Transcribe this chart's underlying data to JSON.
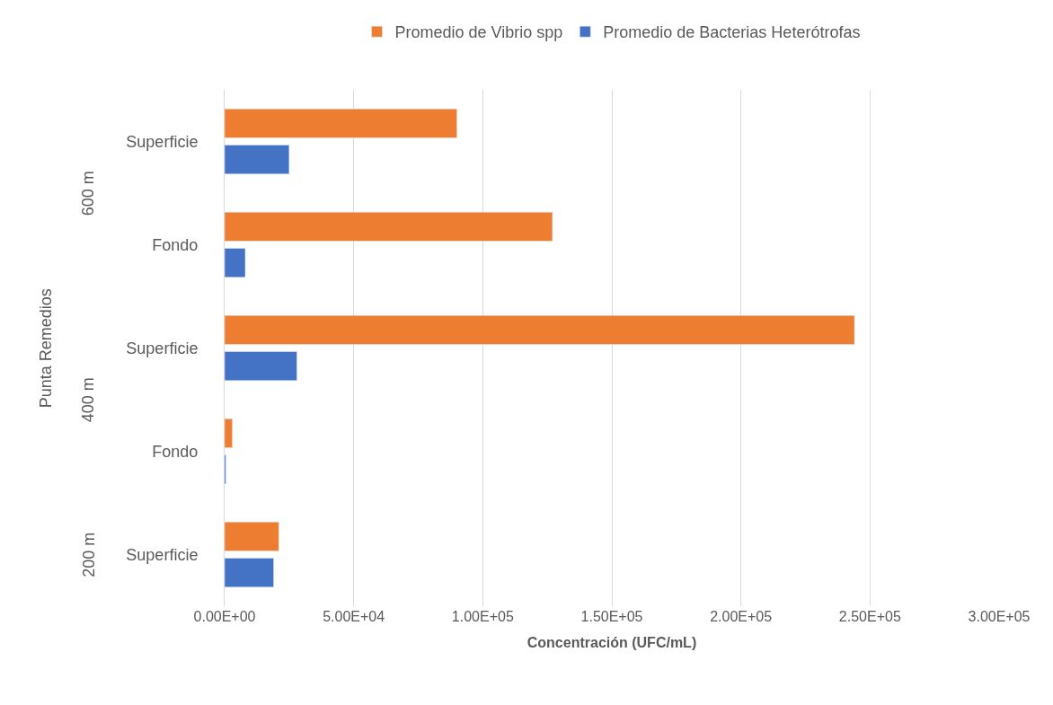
{
  "chart_data": {
    "type": "bar",
    "orientation": "horizontal",
    "xlabel": "Concentración (UFC/mL)",
    "ylabel": "Punta Remedios",
    "categories": [
      "Superficie",
      "Fondo",
      "Superficie",
      "Fondo",
      "Superficie"
    ],
    "annotations": [
      "600 m",
      "400 m",
      "200 m"
    ],
    "series": [
      {
        "name": "Promedio de Vibrio spp",
        "color": "#ed7d31",
        "values": [
          90000,
          127000,
          244000,
          3000,
          21000
        ]
      },
      {
        "name": "Promedio de Bacterias Heterótrofas",
        "color": "#4472c4",
        "values": [
          25000,
          8000,
          28000,
          500,
          19000
        ]
      }
    ],
    "xlim": [
      0,
      300000
    ],
    "xticks": [
      {
        "value": 0,
        "label": "0.00E+00"
      },
      {
        "value": 50000,
        "label": "5.00E+04"
      },
      {
        "value": 100000,
        "label": "1.00E+05"
      },
      {
        "value": 150000,
        "label": "1.50E+05"
      },
      {
        "value": 200000,
        "label": "2.00E+05"
      },
      {
        "value": 250000,
        "label": "2.50E+05"
      },
      {
        "value": 300000,
        "label": "3.00E+05"
      }
    ],
    "grid": "x",
    "legend": "top"
  }
}
